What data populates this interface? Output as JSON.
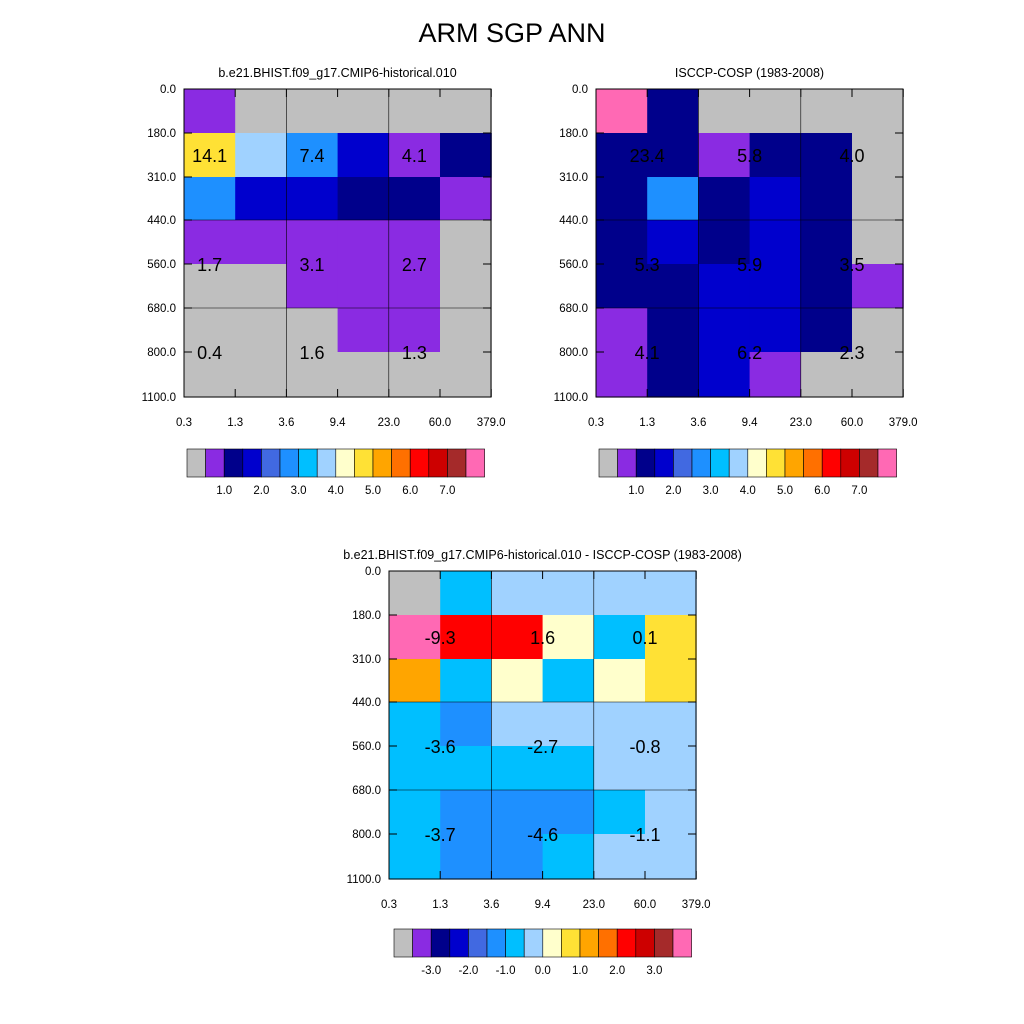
{
  "page": {
    "title": "ARM SGP ANN"
  },
  "palettes": {
    "main": [
      "#bfbfbf",
      "#8a2be2",
      "#00008b",
      "#0000cd",
      "#4169e1",
      "#1e90ff",
      "#00bfff",
      "#a0d2ff",
      "#ffffcc",
      "#ffe135",
      "#ffa500",
      "#ff7000",
      "#ff0000",
      "#cd0000",
      "#a52a2a",
      "#ff69b4"
    ],
    "diff": [
      "#bfbfbf",
      "#8a2be2",
      "#00008b",
      "#0000cd",
      "#4169e1",
      "#1e90ff",
      "#00bfff",
      "#a0d2ff",
      "#ffffcc",
      "#ffe135",
      "#ffa500",
      "#ff7000",
      "#ff0000",
      "#cd0000",
      "#a52a2a",
      "#ff69b4"
    ]
  },
  "chart_data": [
    {
      "type": "heatmap",
      "title": "b.e21.BHIST.f09_g17.CMIP6-historical.010",
      "x_ticks": [
        "0.3",
        "1.3",
        "3.6",
        "9.4",
        "23.0",
        "60.0",
        "379.0"
      ],
      "y_ticks": [
        "0.0",
        "180.0",
        "310.0",
        "440.0",
        "560.0",
        "680.0",
        "800.0",
        "1100.0"
      ],
      "cell_color_index": [
        [
          1,
          0,
          0,
          0,
          0,
          0
        ],
        [
          9,
          7,
          5,
          3,
          1,
          2
        ],
        [
          5,
          3,
          3,
          2,
          2,
          1
        ],
        [
          1,
          1,
          1,
          1,
          1,
          0
        ],
        [
          0,
          0,
          1,
          1,
          1,
          0
        ],
        [
          0,
          0,
          0,
          1,
          1,
          0
        ],
        [
          0,
          0,
          0,
          0,
          0,
          0
        ]
      ],
      "labels": [
        {
          "text": "14.1",
          "xi": 0.5,
          "yi": 1.5
        },
        {
          "text": "7.4",
          "xi": 2.5,
          "yi": 1.5
        },
        {
          "text": "4.1",
          "xi": 4.5,
          "yi": 1.5
        },
        {
          "text": "1.7",
          "xi": 0.5,
          "yi": 4
        },
        {
          "text": "3.1",
          "xi": 2.5,
          "yi": 4
        },
        {
          "text": "2.7",
          "xi": 4.5,
          "yi": 4
        },
        {
          "text": "0.4",
          "xi": 0.5,
          "yi": 6
        },
        {
          "text": "1.6",
          "xi": 2.5,
          "yi": 6
        },
        {
          "text": "1.3",
          "xi": 4.5,
          "yi": 6
        }
      ],
      "colorbar_labels": [
        "1.0",
        "2.0",
        "3.0",
        "4.0",
        "5.0",
        "6.0",
        "7.0"
      ]
    },
    {
      "type": "heatmap",
      "title": "ISCCP-COSP (1983-2008)",
      "x_ticks": [
        "0.3",
        "1.3",
        "3.6",
        "9.4",
        "23.0",
        "60.0",
        "379.0"
      ],
      "y_ticks": [
        "0.0",
        "180.0",
        "310.0",
        "440.0",
        "560.0",
        "680.0",
        "800.0",
        "1100.0"
      ],
      "cell_color_index": [
        [
          15,
          2,
          0,
          0,
          0,
          0
        ],
        [
          2,
          2,
          1,
          2,
          2,
          0
        ],
        [
          2,
          5,
          2,
          3,
          2,
          0
        ],
        [
          2,
          3,
          2,
          3,
          2,
          0
        ],
        [
          2,
          2,
          3,
          3,
          2,
          1
        ],
        [
          1,
          2,
          3,
          3,
          2,
          0
        ],
        [
          1,
          2,
          3,
          1,
          0,
          0
        ]
      ],
      "labels": [
        {
          "text": "23.4",
          "xi": 1,
          "yi": 1.5
        },
        {
          "text": "5.8",
          "xi": 3,
          "yi": 1.5
        },
        {
          "text": "4.0",
          "xi": 5,
          "yi": 1.5
        },
        {
          "text": "5.3",
          "xi": 1,
          "yi": 4
        },
        {
          "text": "5.9",
          "xi": 3,
          "yi": 4
        },
        {
          "text": "3.5",
          "xi": 5,
          "yi": 4
        },
        {
          "text": "4.1",
          "xi": 1,
          "yi": 6
        },
        {
          "text": "6.2",
          "xi": 3,
          "yi": 6
        },
        {
          "text": "2.3",
          "xi": 5,
          "yi": 6
        }
      ],
      "colorbar_labels": [
        "1.0",
        "2.0",
        "3.0",
        "4.0",
        "5.0",
        "6.0",
        "7.0"
      ]
    },
    {
      "type": "heatmap",
      "title": "b.e21.BHIST.f09_g17.CMIP6-historical.010 - ISCCP-COSP (1983-2008)",
      "x_ticks": [
        "0.3",
        "1.3",
        "3.6",
        "9.4",
        "23.0",
        "60.0",
        "379.0"
      ],
      "y_ticks": [
        "0.0",
        "180.0",
        "310.0",
        "440.0",
        "560.0",
        "680.0",
        "800.0",
        "1100.0"
      ],
      "cell_color_index": [
        [
          0,
          6,
          7,
          7,
          7,
          7
        ],
        [
          15,
          12,
          12,
          8,
          6,
          9
        ],
        [
          10,
          6,
          8,
          6,
          8,
          9
        ],
        [
          6,
          5,
          7,
          7,
          7,
          7
        ],
        [
          6,
          6,
          6,
          6,
          7,
          7
        ],
        [
          6,
          5,
          5,
          5,
          6,
          7
        ],
        [
          6,
          5,
          5,
          6,
          7,
          7
        ]
      ],
      "labels": [
        {
          "text": "-9.3",
          "xi": 1,
          "yi": 1.5
        },
        {
          "text": "1.6",
          "xi": 3,
          "yi": 1.5
        },
        {
          "text": "0.1",
          "xi": 5,
          "yi": 1.5
        },
        {
          "text": "-3.6",
          "xi": 1,
          "yi": 4
        },
        {
          "text": "-2.7",
          "xi": 3,
          "yi": 4
        },
        {
          "text": "-0.8",
          "xi": 5,
          "yi": 4
        },
        {
          "text": "-3.7",
          "xi": 1,
          "yi": 6
        },
        {
          "text": "-4.6",
          "xi": 3,
          "yi": 6
        },
        {
          "text": "-1.1",
          "xi": 5,
          "yi": 6
        }
      ],
      "colorbar_labels": [
        "-3.0",
        "-2.0",
        "-1.0",
        "0.0",
        "1.0",
        "2.0",
        "3.0"
      ]
    }
  ]
}
